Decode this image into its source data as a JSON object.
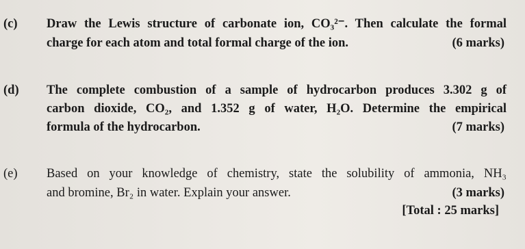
{
  "questions": [
    {
      "label": "(c)",
      "lines": [
        "Draw the Lewis structure of carbonate ion, CO₃²⁻. Then calculate the formal",
        "charge for each atom and total formal charge of the ion."
      ],
      "marks": "(6 marks)"
    },
    {
      "label": "(d)",
      "lines": [
        "The complete combustion of a sample of hydrocarbon produces 3.302 g of",
        "carbon dioxide, CO₂, and 1.352 g of water, H₂O. Determine the empirical",
        "formula of the hydrocarbon."
      ],
      "marks": "(7 marks)"
    },
    {
      "label": "(e)",
      "lines": [
        "Based on your knowledge of chemistry, state the solubility of ammonia, NH₃",
        "and bromine, Br₂ in water. Explain your answer."
      ],
      "marks": "(3 marks)"
    }
  ],
  "total": "[Total : 25 marks]"
}
